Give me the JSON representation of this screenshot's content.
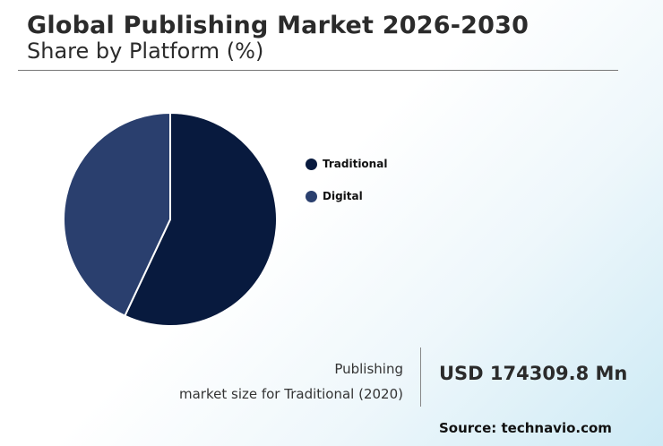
{
  "header": {
    "title": "Global Publishing Market 2026-2030",
    "subtitle": "Share by Platform (%)"
  },
  "chart_data": {
    "type": "pie",
    "categories": [
      "Traditional",
      "Digital"
    ],
    "values": [
      57,
      43
    ],
    "colors": [
      "#081a3e",
      "#2a3f6e"
    ],
    "legend_position": "right"
  },
  "market_size": {
    "label_line1": "Publishing",
    "label_line2": "market size for Traditional (2020)",
    "value": "USD 174309.8 Mn"
  },
  "footer": {
    "source": "Source: technavio.com"
  }
}
